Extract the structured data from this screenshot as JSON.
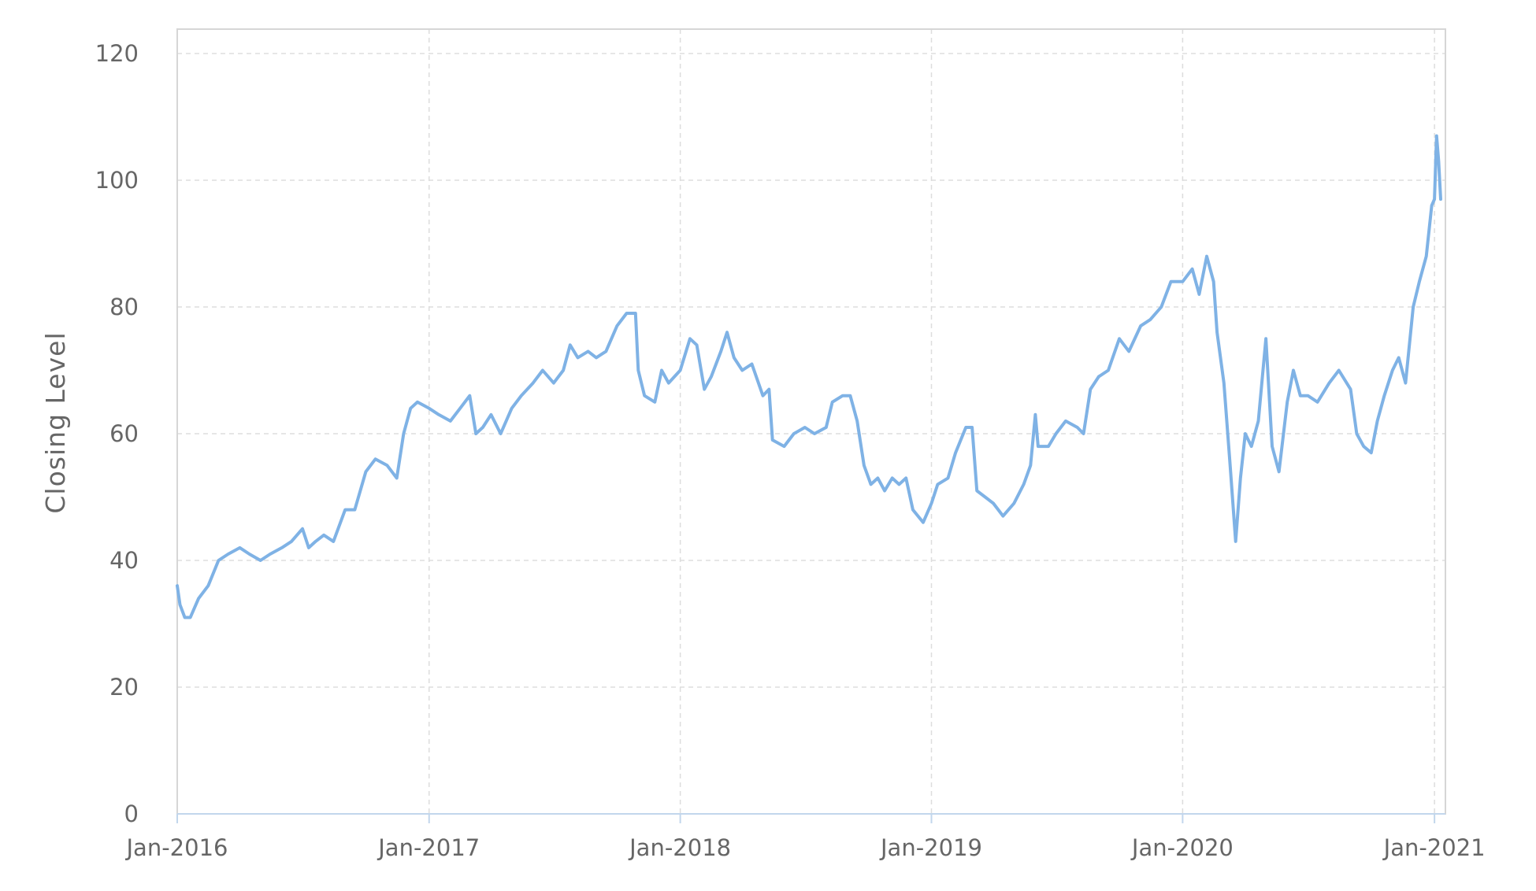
{
  "chart_data": {
    "type": "line",
    "title": "",
    "xlabel": "",
    "ylabel": "Closing Level",
    "grid": true,
    "legend": "none",
    "colors": {
      "series": "#7fb2e5"
    },
    "x_range": [
      "2016-01-01",
      "2021-01-10"
    ],
    "ylim": [
      0,
      120
    ],
    "x_tick_labels": [
      "Jan-2016",
      "Jan-2017",
      "Jan-2018",
      "Jan-2019",
      "Jan-2020",
      "Jan-2021"
    ],
    "y_tick_labels": [
      "0",
      "20",
      "40",
      "60",
      "80",
      "100",
      "120"
    ],
    "series": [
      {
        "points": [
          [
            "2016-01-01",
            36
          ],
          [
            "2016-01-05",
            33
          ],
          [
            "2016-01-12",
            31
          ],
          [
            "2016-01-20",
            31
          ],
          [
            "2016-02-01",
            34
          ],
          [
            "2016-02-15",
            36
          ],
          [
            "2016-03-01",
            40
          ],
          [
            "2016-03-15",
            41
          ],
          [
            "2016-04-01",
            42
          ],
          [
            "2016-04-15",
            41
          ],
          [
            "2016-05-01",
            40
          ],
          [
            "2016-05-15",
            41
          ],
          [
            "2016-06-01",
            42
          ],
          [
            "2016-06-15",
            43
          ],
          [
            "2016-07-01",
            45
          ],
          [
            "2016-07-10",
            42
          ],
          [
            "2016-07-20",
            43
          ],
          [
            "2016-08-01",
            44
          ],
          [
            "2016-08-15",
            43
          ],
          [
            "2016-09-01",
            48
          ],
          [
            "2016-09-15",
            48
          ],
          [
            "2016-10-01",
            54
          ],
          [
            "2016-10-15",
            56
          ],
          [
            "2016-11-01",
            55
          ],
          [
            "2016-11-15",
            53
          ],
          [
            "2016-11-25",
            60
          ],
          [
            "2016-12-05",
            64
          ],
          [
            "2016-12-15",
            65
          ],
          [
            "2017-01-01",
            64
          ],
          [
            "2017-01-15",
            63
          ],
          [
            "2017-02-01",
            62
          ],
          [
            "2017-02-15",
            64
          ],
          [
            "2017-03-01",
            66
          ],
          [
            "2017-03-10",
            60
          ],
          [
            "2017-03-20",
            61
          ],
          [
            "2017-04-01",
            63
          ],
          [
            "2017-04-15",
            60
          ],
          [
            "2017-05-01",
            64
          ],
          [
            "2017-05-15",
            66
          ],
          [
            "2017-06-01",
            68
          ],
          [
            "2017-06-15",
            70
          ],
          [
            "2017-07-01",
            68
          ],
          [
            "2017-07-15",
            70
          ],
          [
            "2017-07-25",
            74
          ],
          [
            "2017-08-05",
            72
          ],
          [
            "2017-08-20",
            73
          ],
          [
            "2017-09-01",
            72
          ],
          [
            "2017-09-15",
            73
          ],
          [
            "2017-10-01",
            77
          ],
          [
            "2017-10-15",
            79
          ],
          [
            "2017-10-28",
            79
          ],
          [
            "2017-11-01",
            70
          ],
          [
            "2017-11-10",
            66
          ],
          [
            "2017-11-25",
            65
          ],
          [
            "2017-12-05",
            70
          ],
          [
            "2017-12-15",
            68
          ],
          [
            "2018-01-01",
            70
          ],
          [
            "2018-01-15",
            75
          ],
          [
            "2018-01-25",
            74
          ],
          [
            "2018-02-05",
            67
          ],
          [
            "2018-02-15",
            69
          ],
          [
            "2018-03-01",
            73
          ],
          [
            "2018-03-10",
            76
          ],
          [
            "2018-03-20",
            72
          ],
          [
            "2018-04-01",
            70
          ],
          [
            "2018-04-15",
            71
          ],
          [
            "2018-05-01",
            66
          ],
          [
            "2018-05-10",
            67
          ],
          [
            "2018-05-15",
            59
          ],
          [
            "2018-06-01",
            58
          ],
          [
            "2018-06-15",
            60
          ],
          [
            "2018-07-01",
            61
          ],
          [
            "2018-07-15",
            60
          ],
          [
            "2018-08-01",
            61
          ],
          [
            "2018-08-10",
            65
          ],
          [
            "2018-08-25",
            66
          ],
          [
            "2018-09-05",
            66
          ],
          [
            "2018-09-15",
            62
          ],
          [
            "2018-09-25",
            55
          ],
          [
            "2018-10-05",
            52
          ],
          [
            "2018-10-15",
            53
          ],
          [
            "2018-10-25",
            51
          ],
          [
            "2018-11-05",
            53
          ],
          [
            "2018-11-15",
            52
          ],
          [
            "2018-11-25",
            53
          ],
          [
            "2018-12-05",
            48
          ],
          [
            "2018-12-20",
            46
          ],
          [
            "2019-01-01",
            49
          ],
          [
            "2019-01-10",
            52
          ],
          [
            "2019-01-25",
            53
          ],
          [
            "2019-02-05",
            57
          ],
          [
            "2019-02-20",
            61
          ],
          [
            "2019-03-01",
            61
          ],
          [
            "2019-03-08",
            51
          ],
          [
            "2019-03-20",
            50
          ],
          [
            "2019-04-01",
            49
          ],
          [
            "2019-04-15",
            47
          ],
          [
            "2019-05-01",
            49
          ],
          [
            "2019-05-15",
            52
          ],
          [
            "2019-05-25",
            55
          ],
          [
            "2019-06-01",
            63
          ],
          [
            "2019-06-05",
            58
          ],
          [
            "2019-06-20",
            58
          ],
          [
            "2019-07-01",
            60
          ],
          [
            "2019-07-15",
            62
          ],
          [
            "2019-08-01",
            61
          ],
          [
            "2019-08-10",
            60
          ],
          [
            "2019-08-20",
            67
          ],
          [
            "2019-09-01",
            69
          ],
          [
            "2019-09-15",
            70
          ],
          [
            "2019-10-01",
            75
          ],
          [
            "2019-10-15",
            73
          ],
          [
            "2019-11-01",
            77
          ],
          [
            "2019-11-15",
            78
          ],
          [
            "2019-12-01",
            80
          ],
          [
            "2019-12-15",
            84
          ],
          [
            "2020-01-01",
            84
          ],
          [
            "2020-01-15",
            86
          ],
          [
            "2020-01-25",
            82
          ],
          [
            "2020-02-05",
            88
          ],
          [
            "2020-02-15",
            84
          ],
          [
            "2020-02-20",
            76
          ],
          [
            "2020-03-01",
            68
          ],
          [
            "2020-03-10",
            55
          ],
          [
            "2020-03-18",
            43
          ],
          [
            "2020-03-25",
            53
          ],
          [
            "2020-04-01",
            60
          ],
          [
            "2020-04-10",
            58
          ],
          [
            "2020-04-20",
            62
          ],
          [
            "2020-05-01",
            75
          ],
          [
            "2020-05-10",
            58
          ],
          [
            "2020-05-20",
            54
          ],
          [
            "2020-06-01",
            65
          ],
          [
            "2020-06-10",
            70
          ],
          [
            "2020-06-20",
            66
          ],
          [
            "2020-07-01",
            66
          ],
          [
            "2020-07-15",
            65
          ],
          [
            "2020-08-01",
            68
          ],
          [
            "2020-08-15",
            70
          ],
          [
            "2020-09-01",
            67
          ],
          [
            "2020-09-10",
            60
          ],
          [
            "2020-09-20",
            58
          ],
          [
            "2020-10-01",
            57
          ],
          [
            "2020-10-10",
            62
          ],
          [
            "2020-10-20",
            66
          ],
          [
            "2020-11-01",
            70
          ],
          [
            "2020-11-10",
            72
          ],
          [
            "2020-11-20",
            68
          ],
          [
            "2020-12-01",
            80
          ],
          [
            "2020-12-10",
            84
          ],
          [
            "2020-12-20",
            88
          ],
          [
            "2020-12-28",
            96
          ],
          [
            "2021-01-01",
            97
          ],
          [
            "2021-01-04",
            107
          ],
          [
            "2021-01-07",
            103
          ],
          [
            "2021-01-10",
            97
          ]
        ]
      }
    ]
  }
}
